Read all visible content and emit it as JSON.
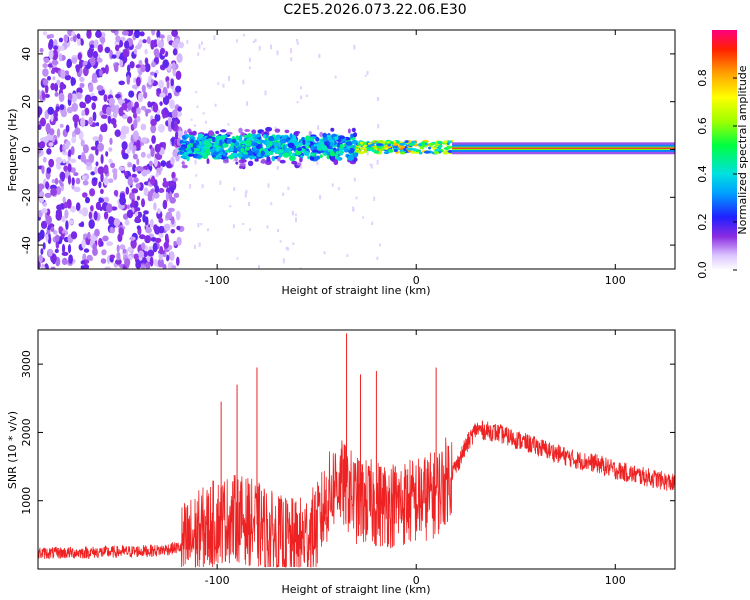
{
  "chart_data": [
    {
      "type": "heatmap",
      "title": "C2E5.2026.073.22.06.E30",
      "xlabel": "Height of straight line (km)",
      "ylabel": "Frequency (Hz)",
      "xlim": [
        -190,
        130
      ],
      "ylim": [
        -50,
        50
      ],
      "xticks": [
        -100,
        0,
        100
      ],
      "yticks": [
        -40,
        -20,
        0,
        20,
        40
      ],
      "colorbar": {
        "label": "Normalized spectral amplitude",
        "range": [
          0,
          1
        ],
        "ticks": [
          "0.0",
          "0.2",
          "0.4",
          "0.6",
          "0.8"
        ],
        "tick_values": [
          0.0,
          0.2,
          0.4,
          0.6,
          0.8
        ]
      },
      "regions": [
        {
          "x_range": [
            -190,
            -118
          ],
          "description": "broadband noise",
          "level": 0.15
        },
        {
          "x_range": [
            -118,
            -30
          ],
          "freq_band": [
            -8,
            8
          ],
          "level": 0.35
        },
        {
          "x_range": [
            -30,
            18
          ],
          "freq_band": [
            -2,
            4
          ],
          "level": 0.6
        },
        {
          "x_range": [
            18,
            130
          ],
          "freq_band": [
            -1,
            2
          ],
          "level": 0.95
        }
      ]
    },
    {
      "type": "line",
      "title": "",
      "xlabel": "Height of straight line (km)",
      "ylabel": "SNR (10 * v/v)",
      "xlim": [
        -190,
        130
      ],
      "ylim": [
        0,
        3500
      ],
      "xticks": [
        -100,
        0,
        100
      ],
      "yticks": [
        1000,
        2000,
        3000
      ],
      "series": [
        {
          "name": "SNR",
          "color": "#ee2222",
          "x": [
            -190,
            -170,
            -150,
            -130,
            -118,
            -110,
            -100,
            -90,
            -80,
            -70,
            -60,
            -50,
            -45,
            -40,
            -35,
            -30,
            -20,
            -10,
            0,
            10,
            20,
            25,
            30,
            40,
            50,
            60,
            70,
            80,
            90,
            100,
            110,
            120,
            130
          ],
          "y": [
            230,
            240,
            250,
            270,
            320,
            500,
            700,
            750,
            650,
            450,
            380,
            600,
            1000,
            1300,
            1200,
            1000,
            950,
            950,
            1000,
            1100,
            1500,
            1800,
            2050,
            2000,
            1900,
            1800,
            1700,
            1600,
            1550,
            1450,
            1380,
            1320,
            1250
          ],
          "peaks": [
            {
              "x": -98,
              "y": 2450
            },
            {
              "x": -90,
              "y": 2700
            },
            {
              "x": -80,
              "y": 2950
            },
            {
              "x": -35,
              "y": 3450
            },
            {
              "x": -28,
              "y": 2850
            },
            {
              "x": -20,
              "y": 2900
            },
            {
              "x": 10,
              "y": 2950
            }
          ]
        }
      ]
    }
  ]
}
